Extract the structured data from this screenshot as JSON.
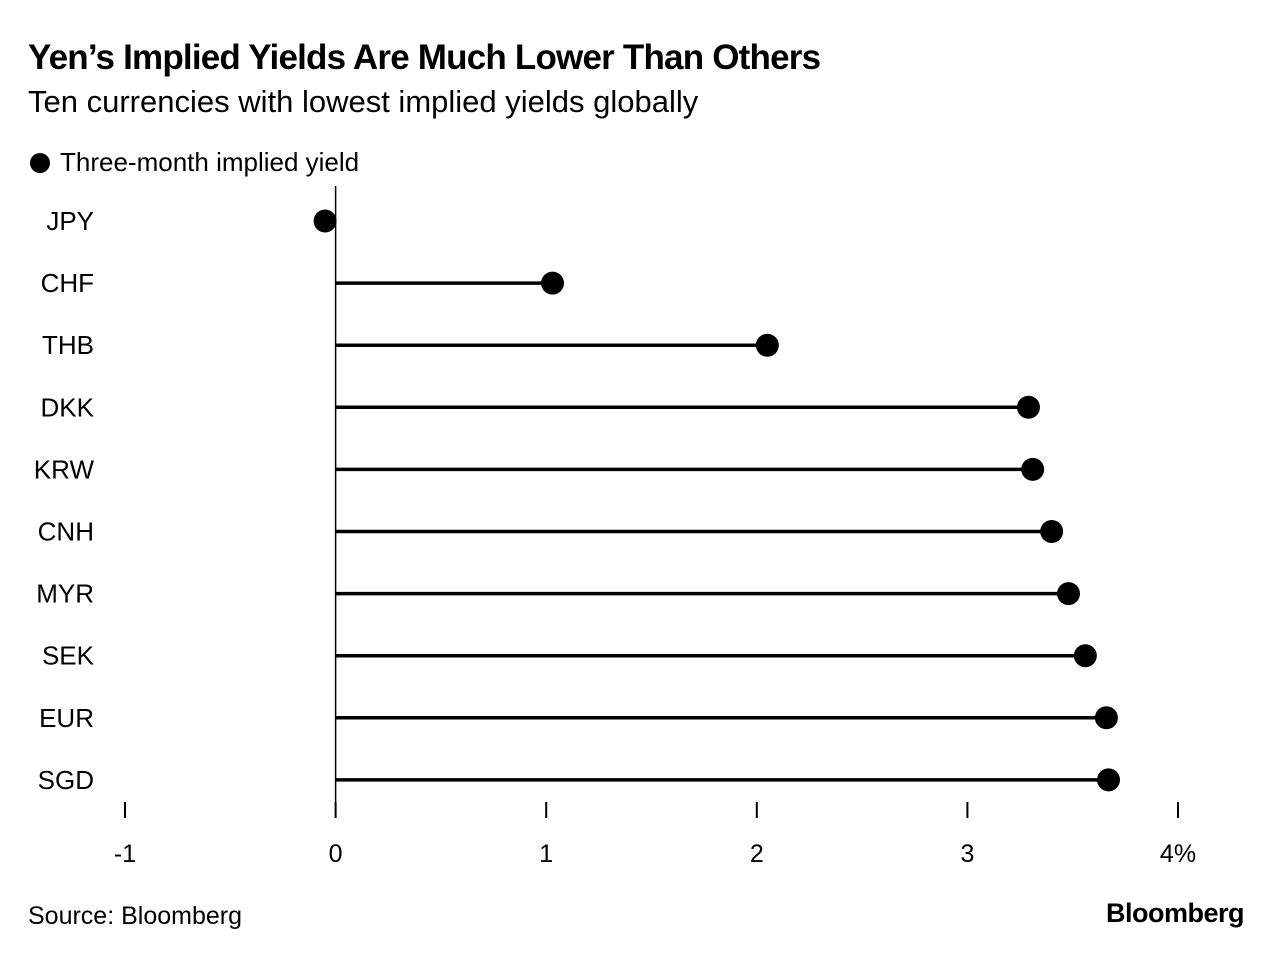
{
  "title": "Yen’s Implied Yields Are Much Lower Than Others",
  "subtitle": "Ten currencies with lowest implied yields globally",
  "source": "Source: Bloomberg",
  "brand": "Bloomberg",
  "colors": {
    "marker": "#000000",
    "stem": "#000000",
    "axis": "#000000",
    "background": "#ffffff"
  },
  "chart_data": {
    "type": "lollipop",
    "legend": {
      "position": "top-left",
      "entries": [
        "Three-month implied yield"
      ]
    },
    "categories": [
      "JPY",
      "CHF",
      "THB",
      "DKK",
      "KRW",
      "CNH",
      "MYR",
      "SEK",
      "EUR",
      "SGD"
    ],
    "series": [
      {
        "name": "Three-month implied yield",
        "values": [
          -0.05,
          1.03,
          2.05,
          3.29,
          3.31,
          3.4,
          3.48,
          3.56,
          3.66,
          3.67
        ]
      }
    ],
    "x_ticks": [
      {
        "value": -1,
        "label": "-1"
      },
      {
        "value": 0,
        "label": "0"
      },
      {
        "value": 1,
        "label": "1"
      },
      {
        "value": 2,
        "label": "2"
      },
      {
        "value": 3,
        "label": "3"
      },
      {
        "value": 4,
        "label": "4%"
      }
    ],
    "xlim": [
      -1,
      4
    ],
    "xlabel": "",
    "ylabel": "",
    "grid": false
  }
}
